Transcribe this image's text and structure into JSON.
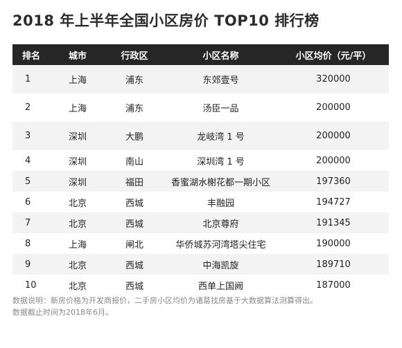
{
  "title": "2018 年上半年全国小区房价 TOP10 排行榜",
  "table": {
    "headers": [
      "排名",
      "城市",
      "行政区",
      "小区名称",
      "小区均价（元/平）"
    ],
    "rows": [
      {
        "rank": "1",
        "city": "上海",
        "district": "浦东",
        "name": "东郊壹号",
        "price": "320000"
      },
      {
        "rank": "2",
        "city": "上海",
        "district": "浦东",
        "name": "汤臣一品",
        "price": "200000"
      },
      {
        "rank": "3",
        "city": "深圳",
        "district": "大鹏",
        "name": "龙岐湾 1 号",
        "price": "200000"
      },
      {
        "rank": "4",
        "city": "深圳",
        "district": "南山",
        "name": "深圳湾 1 号",
        "price": "200000"
      },
      {
        "rank": "5",
        "city": "深圳",
        "district": "福田",
        "name": "香蜜湖水榭花都一期小区",
        "price": "197360"
      },
      {
        "rank": "6",
        "city": "北京",
        "district": "西城",
        "name": "丰融园",
        "price": "194727"
      },
      {
        "rank": "7",
        "city": "北京",
        "district": "西城",
        "name": "北京尊府",
        "price": "191345"
      },
      {
        "rank": "8",
        "city": "上海",
        "district": "闸北",
        "name": "华侨城苏河湾塔尖住宅",
        "price": "190000"
      },
      {
        "rank": "9",
        "city": "北京",
        "district": "西城",
        "name": "中海凯旋",
        "price": "189710"
      },
      {
        "rank": "10",
        "city": "北京",
        "district": "西城",
        "name": "西单上国阙",
        "price": "187000"
      }
    ]
  },
  "notes": {
    "line1": "数据说明：新房价格为开发商报价，二手房小区均价为诸葛找房基于大数据算法测算得出。",
    "line2": "数据截止时间为2018年6月。"
  }
}
